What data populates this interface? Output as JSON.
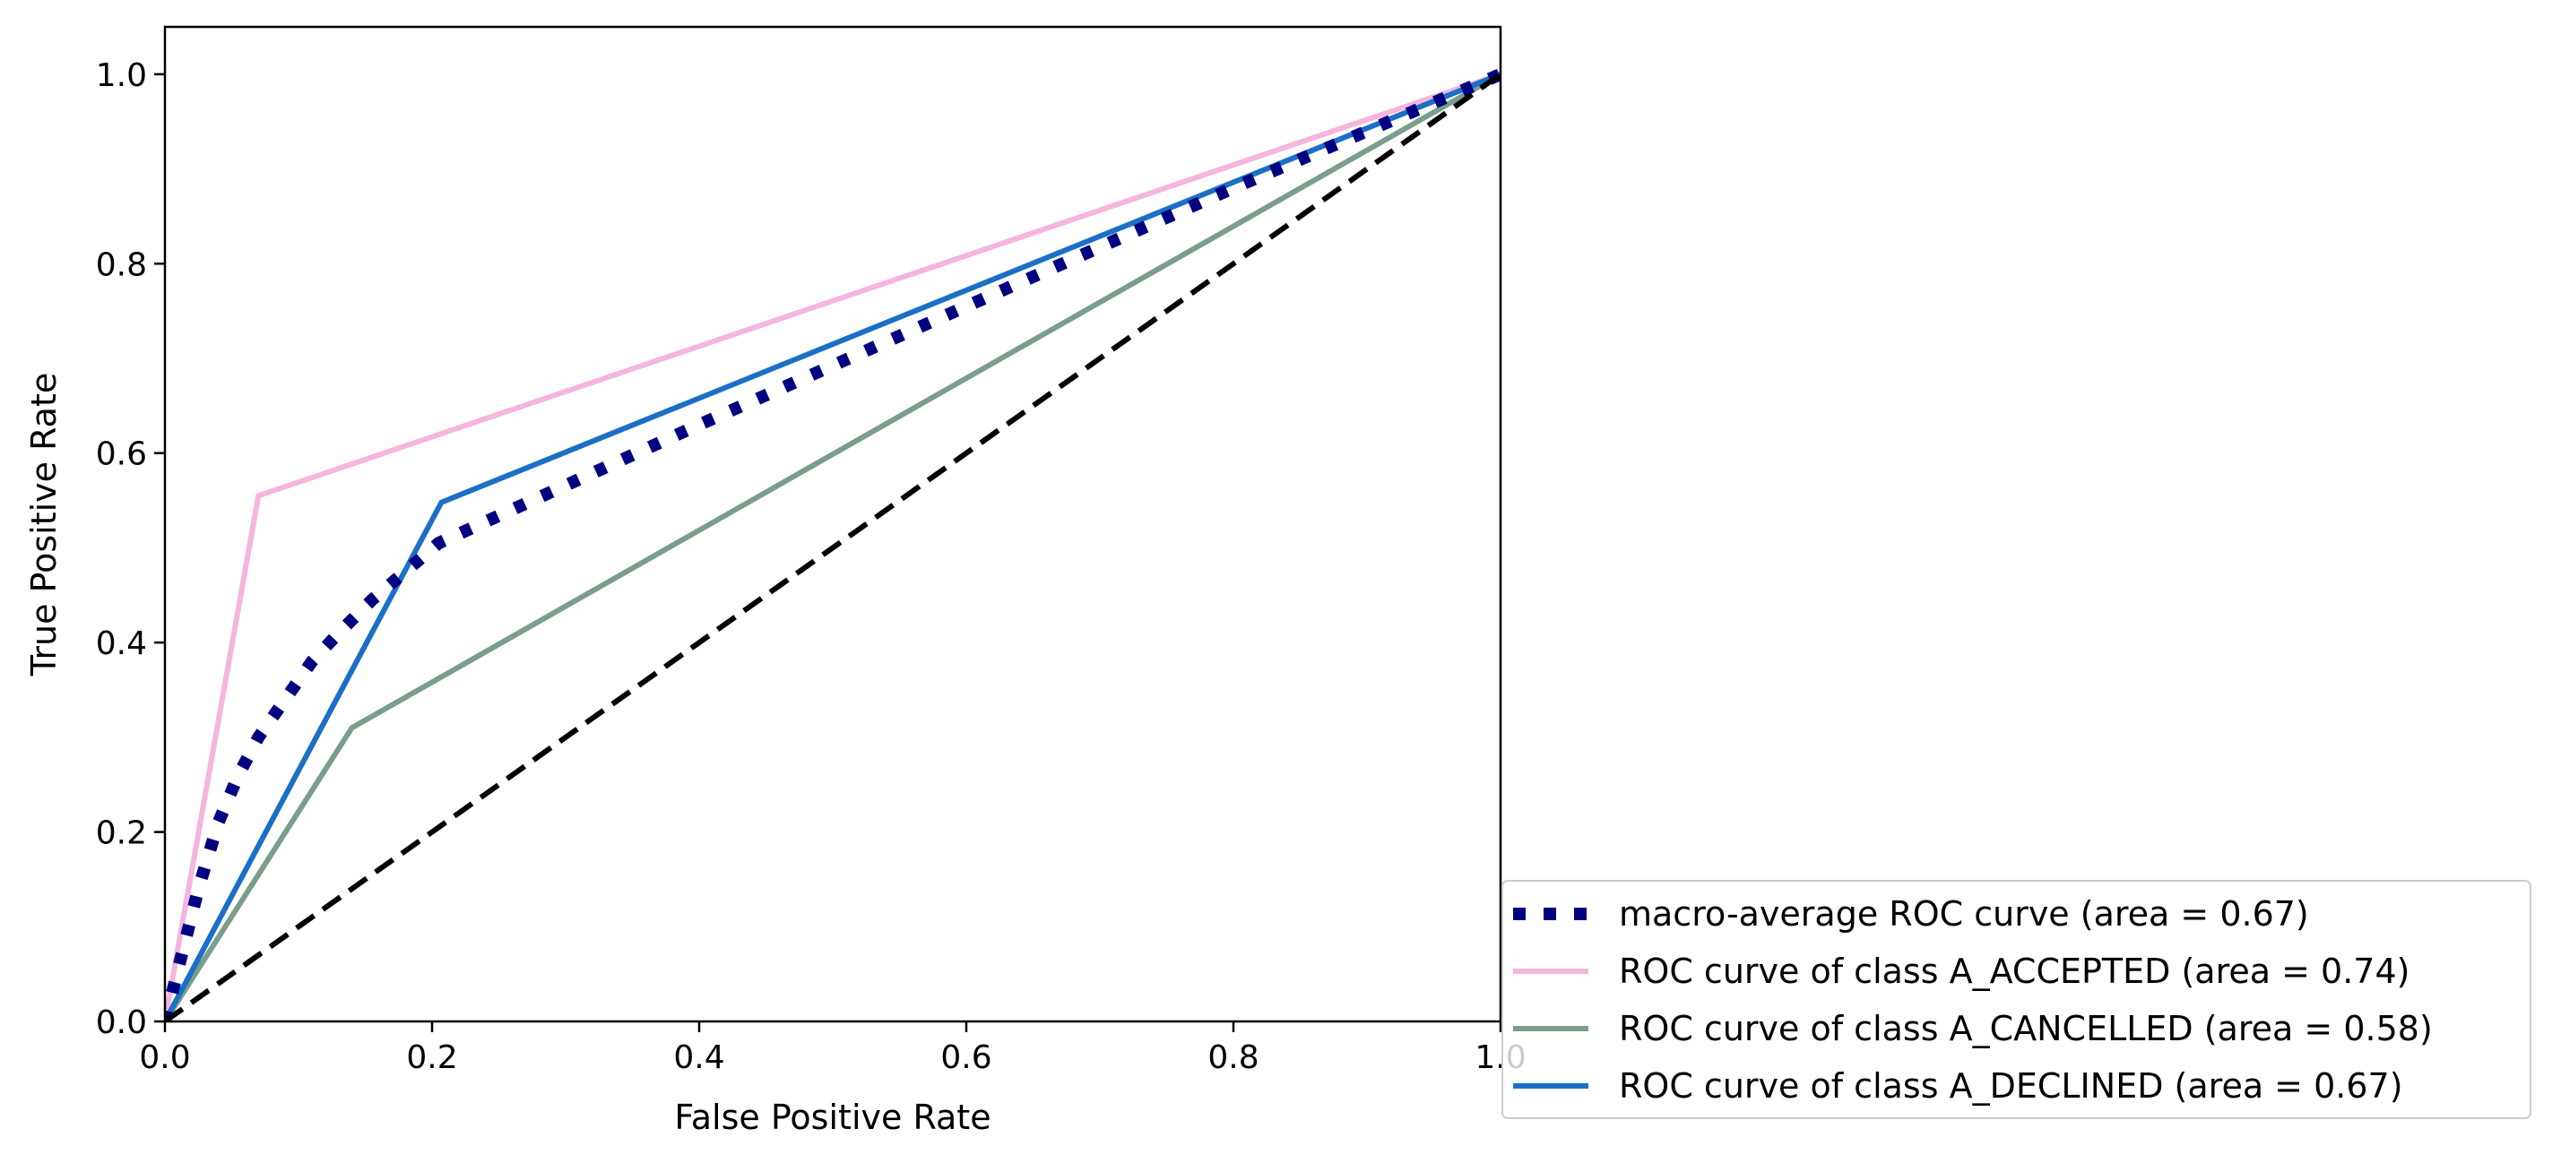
{
  "chart_data": {
    "type": "line",
    "title": "",
    "xlabel": "False Positive Rate",
    "ylabel": "True Positive Rate",
    "xlim": [
      0.0,
      1.0
    ],
    "ylim": [
      0.0,
      1.05
    ],
    "xticks": [
      "0.0",
      "0.2",
      "0.4",
      "0.6",
      "0.8",
      "1.0"
    ],
    "yticks": [
      "0.0",
      "0.2",
      "0.4",
      "0.6",
      "0.8",
      "1.0"
    ],
    "grid": false,
    "legend_position": "lower-right",
    "series": [
      {
        "name": "macro-average ROC curve (area = 0.67)",
        "color": "#000080",
        "style": "dotted",
        "x": [
          0.0,
          0.0125,
          0.025,
          0.04,
          0.055,
          0.07,
          0.09,
          0.11,
          0.13,
          0.155,
          0.18,
          0.205,
          0.4,
          0.6,
          0.8,
          1.0
        ],
        "y": [
          0.0,
          0.07,
          0.14,
          0.21,
          0.26,
          0.3,
          0.34,
          0.38,
          0.41,
          0.445,
          0.475,
          0.505,
          0.63,
          0.755,
          0.88,
          1.0
        ]
      },
      {
        "name": "ROC curve of class A_ACCEPTED (area = 0.74)",
        "color": "#f5b5de",
        "style": "solid",
        "x": [
          0.0,
          0.07,
          1.0
        ],
        "y": [
          0.0,
          0.555,
          1.0
        ]
      },
      {
        "name": "ROC curve of class A_CANCELLED (area = 0.58)",
        "color": "#7a9e8b",
        "style": "solid",
        "x": [
          0.0,
          0.14,
          1.0
        ],
        "y": [
          0.0,
          0.31,
          1.0
        ]
      },
      {
        "name": "ROC curve of class A_DECLINED (area = 0.67)",
        "color": "#1b6fc7",
        "style": "solid",
        "x": [
          0.0,
          0.207,
          1.0
        ],
        "y": [
          0.0,
          0.548,
          1.0
        ]
      },
      {
        "name": "",
        "color": "#000000",
        "style": "dashed",
        "x": [
          0.0,
          1.0
        ],
        "y": [
          0.0,
          1.0
        ]
      }
    ]
  }
}
